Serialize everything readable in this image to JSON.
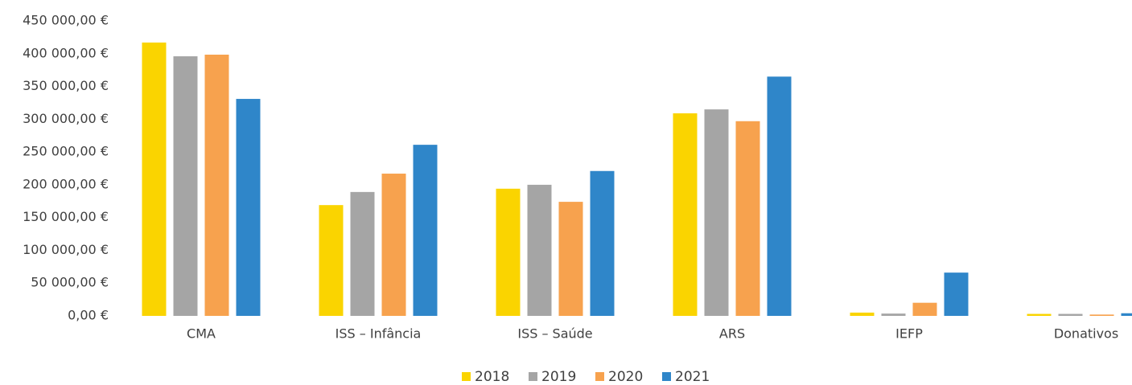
{
  "chart_data": {
    "type": "bar",
    "categories": [
      "CMA",
      "ISS – Infância",
      "ISS – Saúde",
      "ARS",
      "IEFP",
      "Donativos"
    ],
    "series": [
      {
        "name": "2018",
        "color": "#fad400",
        "values": [
          417000,
          169000,
          194000,
          309000,
          5000,
          3000
        ]
      },
      {
        "name": "2019",
        "color": "#a5a5a5",
        "values": [
          396000,
          189000,
          200000,
          315000,
          3500,
          3000
        ]
      },
      {
        "name": "2020",
        "color": "#f7a24e",
        "values": [
          398500,
          217000,
          174000,
          297000,
          20000,
          2000
        ]
      },
      {
        "name": "2021",
        "color": "#2f86c9",
        "values": [
          331000,
          261000,
          221000,
          365000,
          66000,
          4000
        ]
      }
    ],
    "ylim": [
      0,
      450000
    ],
    "yticks": [
      {
        "value": 0,
        "label": "0,00 €"
      },
      {
        "value": 50000,
        "label": "50 000,00 €"
      },
      {
        "value": 100000,
        "label": "100 000,00 €"
      },
      {
        "value": 150000,
        "label": "150 000,00 €"
      },
      {
        "value": 200000,
        "label": "200 000,00 €"
      },
      {
        "value": 250000,
        "label": "250 000,00 €"
      },
      {
        "value": 300000,
        "label": "300 000,00 €"
      },
      {
        "value": 350000,
        "label": "350 000,00 €"
      },
      {
        "value": 400000,
        "label": "400 000,00 €"
      },
      {
        "value": 450000,
        "label": "450 000,00 €"
      }
    ],
    "grid": false,
    "legend": "bottom"
  }
}
